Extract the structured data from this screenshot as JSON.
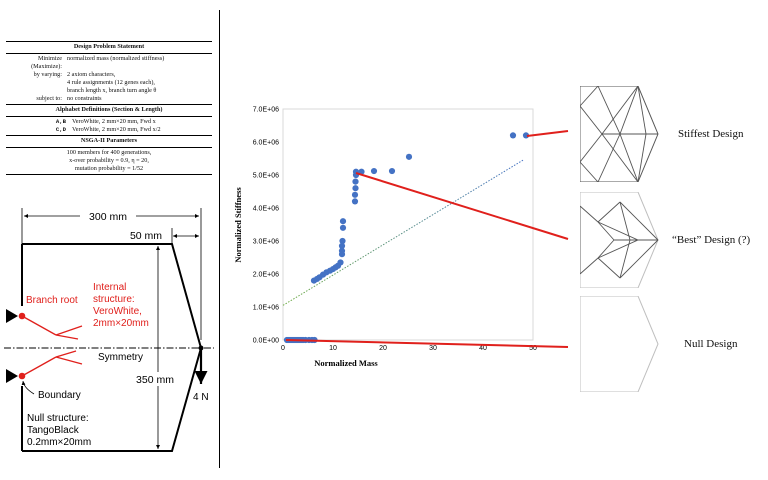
{
  "problem_statement": {
    "title": "Design Problem Statement",
    "rows": [
      {
        "key": "Minimize (Maximize):",
        "value": "normalized mass (normalized stiffness)"
      },
      {
        "key": "by varying:",
        "value": "2 axiom characters,"
      },
      {
        "key": "",
        "value": "4 rule assignments (12 genes each),"
      },
      {
        "key": "",
        "value": "branch length x, branch turn angle θ"
      },
      {
        "key": "subject to:",
        "value": "no constraints"
      }
    ],
    "alphabet_title": "Alphabet Definitions (Section & Length)",
    "alphabet_rows": [
      {
        "key": "A,B",
        "value": "VeroWhite, 2 mm×20 mm, Fwd x"
      },
      {
        "key": "C,D",
        "value": "VeroWhite, 2 mm×20 mm, Fwd x/2"
      }
    ],
    "nsga_title": "NSGA-II Parameters",
    "nsga_lines": [
      "100 members for 400 generations,",
      "x-over probability = 0.9, η = 20,",
      "mutation probability = 1/52"
    ]
  },
  "diagram": {
    "dim_300": "300 mm",
    "dim_50": "50 mm",
    "dim_350": "350 mm",
    "load": "4 N",
    "branch_root": "Branch root",
    "internal_structure": [
      "Internal",
      "structure:",
      "VeroWhite,",
      "2mm×20mm"
    ],
    "symmetry": "Symmetry",
    "boundary": "Boundary",
    "null_structure": [
      "Null structure:",
      "TangoBlack",
      "0.2mm×20mm"
    ],
    "colors": {
      "annotation_red": "#e0201c",
      "line": "#000000"
    }
  },
  "chart_data": {
    "type": "scatter",
    "title": "",
    "xlabel": "Normalized Mass",
    "ylabel": "Normalized Stiffness",
    "xlim": [
      0,
      50
    ],
    "ylim": [
      0,
      7000000
    ],
    "x_ticks": [
      0,
      10,
      20,
      30,
      40,
      50
    ],
    "y_ticks": [
      0,
      1000000,
      2000000,
      3000000,
      4000000,
      5000000,
      6000000,
      7000000
    ],
    "y_tick_labels": [
      "0.0E+00",
      "1.0E+06",
      "2.0E+06",
      "3.0E+06",
      "4.0E+06",
      "5.0E+06",
      "6.0E+06",
      "7.0E+06"
    ],
    "grid": false,
    "point_color": "#4472c4",
    "series": [
      {
        "points": [
          [
            0.8,
            0
          ],
          [
            1.2,
            0
          ],
          [
            1.6,
            0
          ],
          [
            2.0,
            0
          ],
          [
            2.4,
            0
          ],
          [
            2.8,
            0
          ],
          [
            3.2,
            0
          ],
          [
            3.6,
            0
          ],
          [
            4.0,
            0
          ],
          [
            4.5,
            0
          ],
          [
            5.2,
            0
          ],
          [
            5.8,
            0
          ],
          [
            6.3,
            0
          ],
          [
            6.2,
            1800000
          ],
          [
            6.8,
            1850000
          ],
          [
            7.3,
            1900000
          ],
          [
            8.0,
            1980000
          ],
          [
            8.7,
            2050000
          ],
          [
            9.4,
            2100000
          ],
          [
            10.0,
            2150000
          ],
          [
            10.5,
            2200000
          ],
          [
            11.0,
            2250000
          ],
          [
            11.5,
            2350000
          ],
          [
            11.8,
            2600000
          ],
          [
            11.8,
            2700000
          ],
          [
            11.8,
            2850000
          ],
          [
            11.9,
            3000000
          ],
          [
            12.0,
            3400000
          ],
          [
            12.0,
            3600000
          ],
          [
            14.4,
            4200000
          ],
          [
            14.4,
            4400000
          ],
          [
            14.5,
            4600000
          ],
          [
            14.5,
            4800000
          ],
          [
            14.6,
            5000000
          ],
          [
            14.6,
            5100000
          ],
          [
            15.7,
            5100000
          ],
          [
            18.2,
            5120000
          ],
          [
            21.8,
            5120000
          ],
          [
            25.2,
            5550000
          ],
          [
            46.0,
            6200000
          ],
          [
            48.6,
            6200000
          ]
        ]
      }
    ],
    "trendline": {
      "from": [
        0,
        1050000
      ],
      "to": [
        48,
        5450000
      ],
      "color": "#4472c4",
      "start_color": "#70ad47"
    }
  },
  "designs": [
    {
      "label": "Stiffest Design"
    },
    {
      "label": "“Best” Design (?)"
    },
    {
      "label": "Null Design"
    }
  ]
}
